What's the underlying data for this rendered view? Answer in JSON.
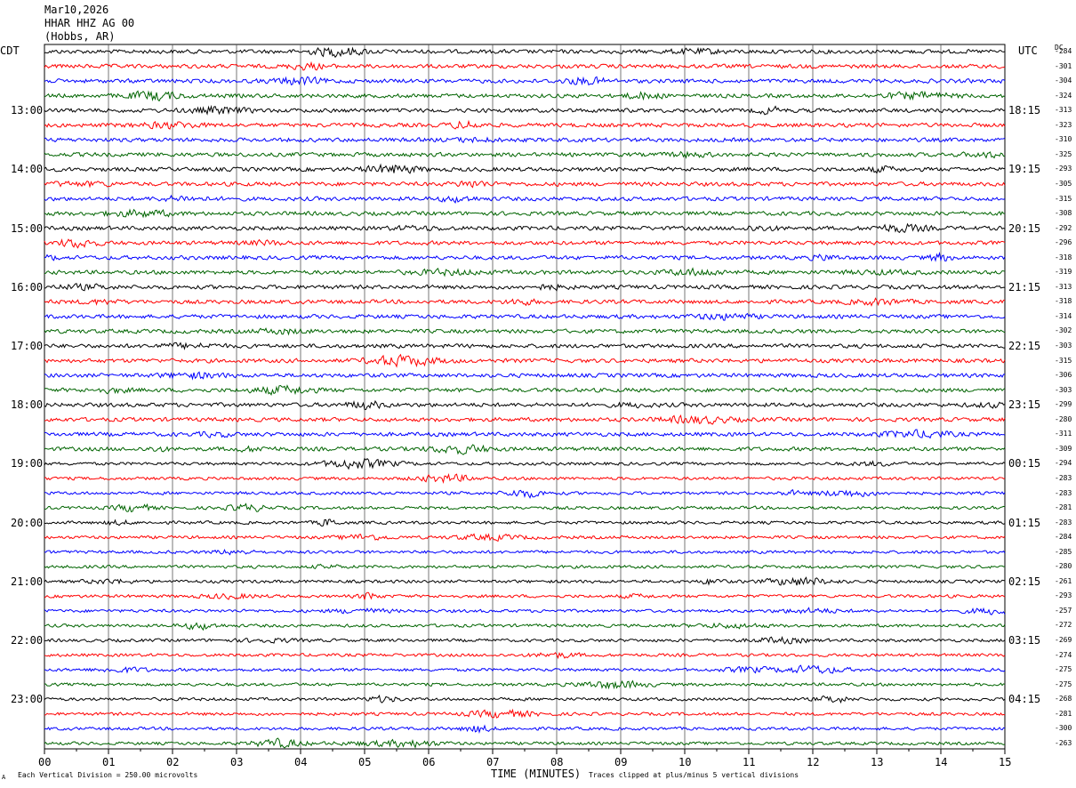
{
  "header": {
    "date": "Mar10,2026",
    "station": "HHAR HHZ AG 00",
    "location": "(Hobbs, AR)"
  },
  "axes": {
    "left_tz": "CDT",
    "right_tz": "UTC",
    "dc_label": "DC",
    "xlabel": "TIME (MINUTES)"
  },
  "footer": {
    "scale_note": "Each Vertical Division =  250.00 microvolts",
    "clip_note": "Traces clipped at plus/minus 5 vertical divisions",
    "corner_mark": "A"
  },
  "chart_data": {
    "type": "line",
    "x_ticks": [
      "00",
      "01",
      "02",
      "03",
      "04",
      "05",
      "06",
      "07",
      "08",
      "09",
      "10",
      "11",
      "12",
      "13",
      "14",
      "15"
    ],
    "xlim": [
      0,
      15
    ],
    "trace_colors": [
      "#000000",
      "#ff0000",
      "#0000ff",
      "#006400"
    ],
    "left_time_labels": [
      {
        "row": 4,
        "label": "13:00"
      },
      {
        "row": 8,
        "label": "14:00"
      },
      {
        "row": 12,
        "label": "15:00"
      },
      {
        "row": 16,
        "label": "16:00"
      },
      {
        "row": 20,
        "label": "17:00"
      },
      {
        "row": 24,
        "label": "18:00"
      },
      {
        "row": 28,
        "label": "19:00"
      },
      {
        "row": 32,
        "label": "20:00"
      },
      {
        "row": 36,
        "label": "21:00"
      },
      {
        "row": 40,
        "label": "22:00"
      },
      {
        "row": 44,
        "label": "23:00"
      }
    ],
    "right_time_labels": [
      {
        "row": 4,
        "label": "18:15"
      },
      {
        "row": 8,
        "label": "19:15"
      },
      {
        "row": 12,
        "label": "20:15"
      },
      {
        "row": 16,
        "label": "21:15"
      },
      {
        "row": 20,
        "label": "22:15"
      },
      {
        "row": 24,
        "label": "23:15"
      },
      {
        "row": 28,
        "label": "00:15"
      },
      {
        "row": 32,
        "label": "01:15"
      },
      {
        "row": 36,
        "label": "02:15"
      },
      {
        "row": 40,
        "label": "03:15"
      },
      {
        "row": 44,
        "label": "04:15"
      }
    ],
    "dc_offsets": [
      "-284",
      "-301",
      "-304",
      "-324",
      "-313",
      "-323",
      "-310",
      "-325",
      "-293",
      "-305",
      "-315",
      "-308",
      "-292",
      "-296",
      "-318",
      "-319",
      "-313",
      "-318",
      "-314",
      "-302",
      "-303",
      "-315",
      "-306",
      "-303",
      "-299",
      "-280",
      "-311",
      "-309",
      "-294",
      "-283",
      "-283",
      "-281",
      "-283",
      "-284",
      "-285",
      "-280",
      "-261",
      "-293",
      "-257",
      "-272",
      "-269",
      "-274",
      "-275",
      "-275",
      "-268",
      "-281",
      "-300",
      "-263"
    ]
  }
}
